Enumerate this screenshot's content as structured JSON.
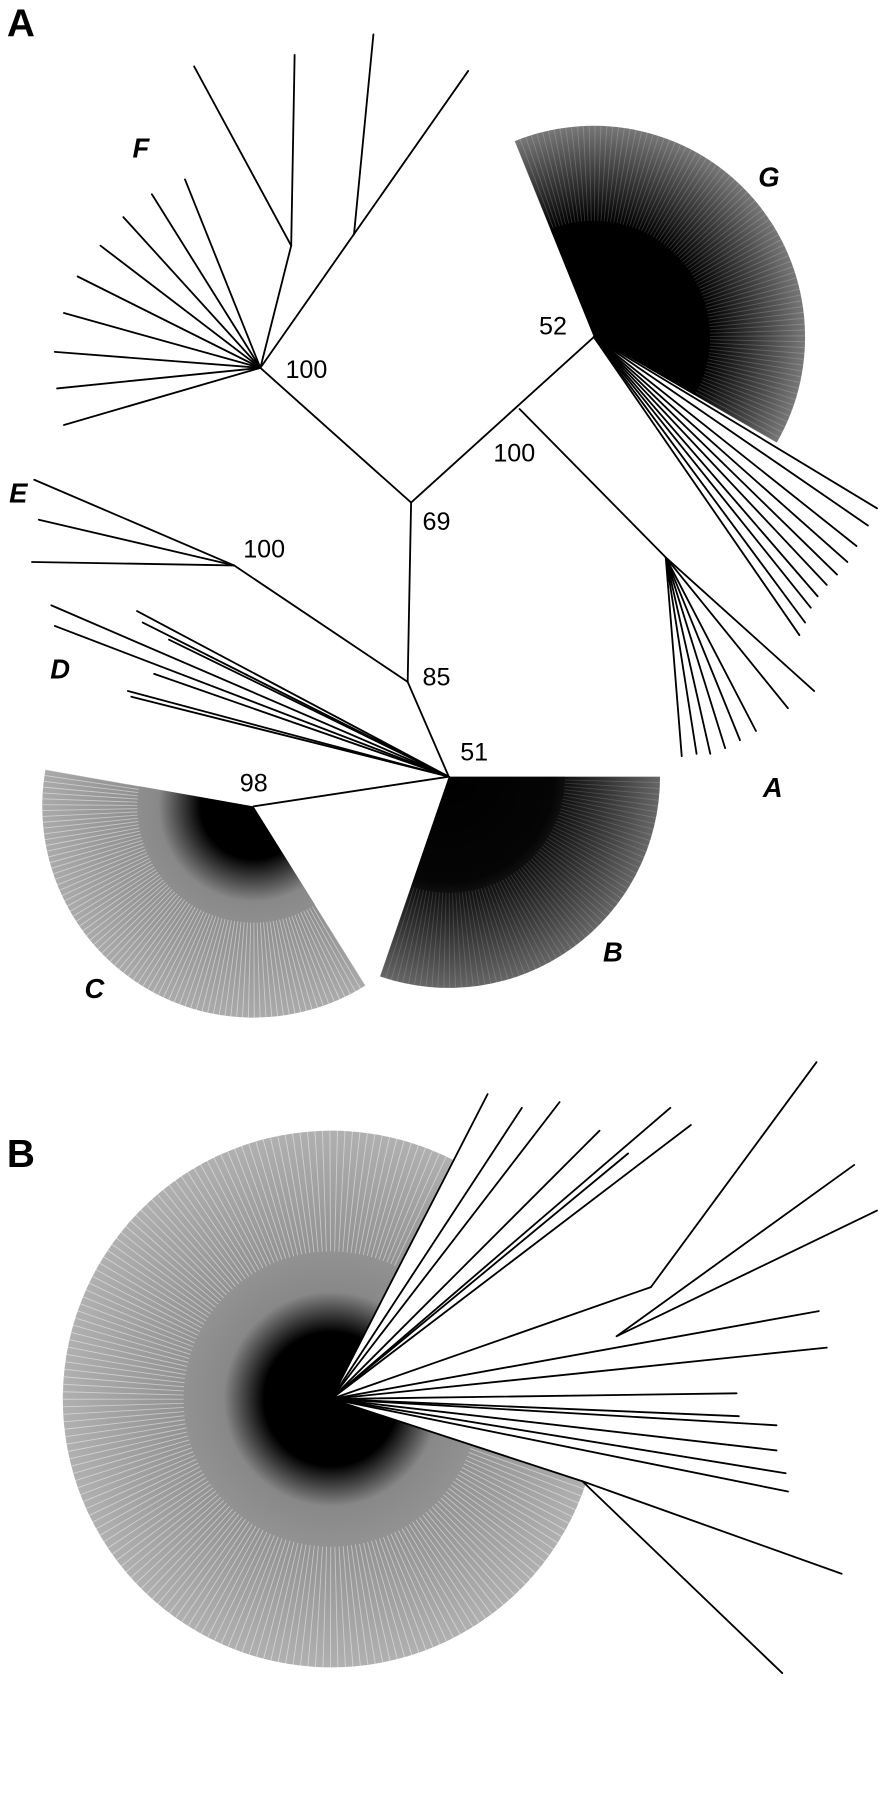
{
  "panels": {
    "top": "A",
    "bottom": "B"
  },
  "tree_a": {
    "clade_labels": {
      "F": "F",
      "G": "G",
      "E": "E",
      "D": "D",
      "A": "A",
      "B": "B",
      "C": "C"
    },
    "support_values": {
      "F": "100",
      "G": "52",
      "A": "100",
      "root_upper": "69",
      "E": "100",
      "mid": "85",
      "base": "51",
      "C": "98"
    }
  }
}
